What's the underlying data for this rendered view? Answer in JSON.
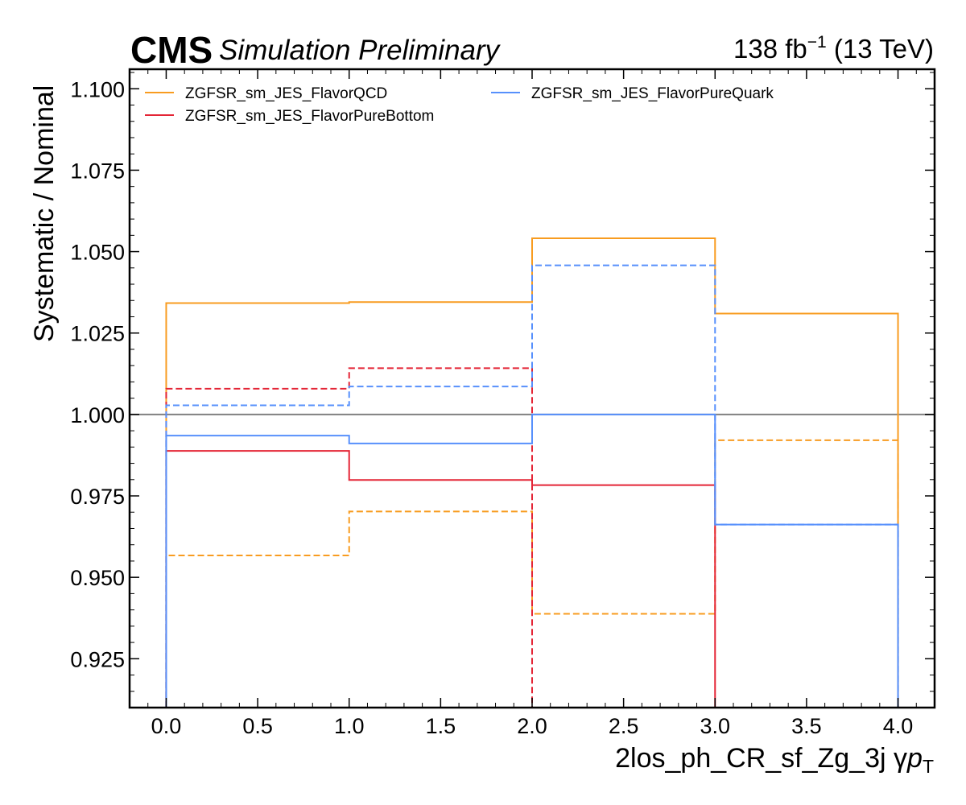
{
  "chart_data": {
    "type": "line",
    "style": "step-histogram",
    "experiment": "CMS",
    "status": "Simulation Preliminary",
    "lumi_value": "138 fb",
    "lumi_exponent": "−1",
    "energy": "(13 TeV)",
    "ylabel": "Systematic / Nominal",
    "xlabel_main": "2los_ph_CR_sf_Zg_3j   γ",
    "xlabel_var": "p",
    "xlabel_sub": "T",
    "xlim": [
      -0.2,
      4.2
    ],
    "ylim": [
      0.91,
      1.106
    ],
    "bin_edges": [
      0,
      1,
      2,
      3,
      4
    ],
    "x_ticks": [
      0.0,
      0.5,
      1.0,
      1.5,
      2.0,
      2.5,
      3.0,
      3.5,
      4.0
    ],
    "x_tick_labels": [
      "0.0",
      "0.5",
      "1.0",
      "1.5",
      "2.0",
      "2.5",
      "3.0",
      "3.5",
      "4.0"
    ],
    "y_ticks": [
      0.925,
      0.95,
      0.975,
      1.0,
      1.025,
      1.05,
      1.075,
      1.1
    ],
    "y_tick_labels": [
      "0.925",
      "0.950",
      "0.975",
      "1.000",
      "1.025",
      "1.050",
      "1.075",
      "1.100"
    ],
    "reference_line": {
      "y": 1.0,
      "color": "#808080"
    },
    "legend_position": "top-left",
    "series": [
      {
        "name": "ZGFSR_sm_JES_FlavorQCD",
        "variation": "up",
        "dash": "solid",
        "color": "#F89C20",
        "values": [
          1.0342,
          1.0345,
          1.0541,
          1.031
        ]
      },
      {
        "name": "",
        "variation": "down",
        "dash": "dashed",
        "color": "#F89C20",
        "values": [
          0.9567,
          0.9702,
          0.9388,
          0.9921
        ]
      },
      {
        "name": "ZGFSR_sm_JES_FlavorPureBottom",
        "variation": "up",
        "dash": "solid",
        "color": "#E42536",
        "values": [
          0.9888,
          0.9799,
          0.9783
        ]
      },
      {
        "name": "",
        "variation": "down",
        "dash": "dashed",
        "color": "#E42536",
        "values": [
          1.0079,
          1.0142
        ]
      },
      {
        "name": "ZGFSR_sm_JES_FlavorPureQuark",
        "variation": "up",
        "dash": "solid",
        "color": "#5790FC",
        "values": [
          0.9935,
          0.9911,
          1.0,
          0.9662
        ]
      },
      {
        "name": "",
        "variation": "down",
        "dash": "dashed",
        "color": "#5790FC",
        "values": [
          1.0028,
          1.0086,
          1.0458,
          0.9662
        ]
      }
    ],
    "grid": false
  }
}
